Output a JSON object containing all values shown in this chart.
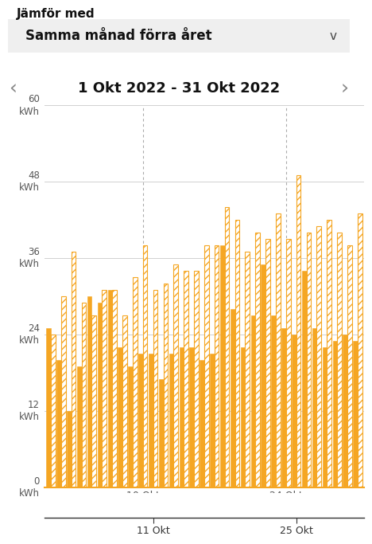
{
  "title_top": "Jämför med",
  "dropdown_text": "Samma månad förra året",
  "dropdown_arrow": "∨",
  "date_range": "1 Okt 2022 - 31 Okt 2022",
  "arrow_left": "‹",
  "arrow_right": "›",
  "ylabel": "kWh",
  "yticks": [
    0,
    12,
    24,
    36,
    48,
    60
  ],
  "bar_color": "#F5A623",
  "bar_color_light": "#FAC06A",
  "background_color": "#FFFFFF",
  "dropdown_bg": "#EFEFEF",
  "num_days": 31,
  "values_solid": [
    25,
    20,
    12,
    19,
    30,
    29,
    31,
    22,
    19,
    21,
    21,
    17,
    21,
    22,
    22,
    20,
    21,
    38,
    28,
    22,
    27,
    35,
    27,
    25,
    24,
    34,
    25,
    22,
    23,
    24,
    23
  ],
  "values_hatched": [
    24,
    30,
    37,
    29,
    27,
    31,
    31,
    27,
    33,
    38,
    31,
    32,
    35,
    34,
    34,
    38,
    38,
    44,
    42,
    37,
    40,
    39,
    43,
    39,
    49,
    40,
    41,
    42,
    40,
    38,
    43
  ],
  "xtick_chart_positions": [
    9,
    23
  ],
  "xtick_chart_labels": [
    "10 Okt",
    "24 Okt"
  ],
  "xtick_bottom_positions": [
    10,
    24
  ],
  "xtick_bottom_labels": [
    "11 Okt",
    "25 Okt"
  ]
}
